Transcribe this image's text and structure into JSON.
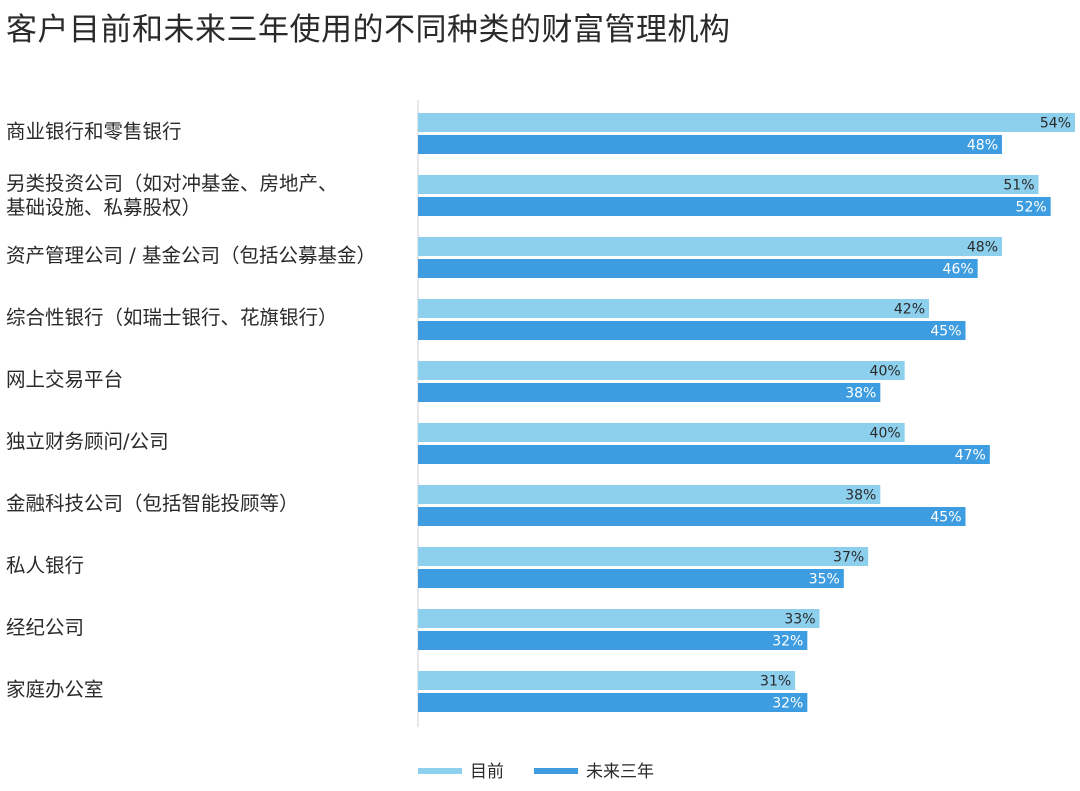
{
  "chart_data": {
    "type": "bar",
    "orientation": "horizontal",
    "title": "客户目前和未来三年使用的不同种类的财富管理机构",
    "categories": [
      "商业银行和零售银行",
      "另类投资公司（如对冲基金、房地产、\n基础设施、私募股权）",
      "资产管理公司 / 基金公司（包括公募基金）",
      "综合性银行（如瑞士银行、花旗银行）",
      "网上交易平台",
      "独立财务顾问/公司",
      "金融科技公司（包括智能投顾等）",
      "私人银行",
      "经纪公司",
      "家庭办公室"
    ],
    "series": [
      {
        "name": "目前",
        "values": [
          54,
          51,
          48,
          42,
          40,
          40,
          38,
          37,
          33,
          31
        ],
        "color": "#8dd0ee"
      },
      {
        "name": "未来三年",
        "values": [
          48,
          52,
          46,
          45,
          38,
          47,
          45,
          35,
          32,
          32
        ],
        "color": "#3d9de0"
      }
    ],
    "value_suffix": "%",
    "xlim": [
      0,
      54
    ],
    "grid": false,
    "legend_position": "bottom"
  }
}
